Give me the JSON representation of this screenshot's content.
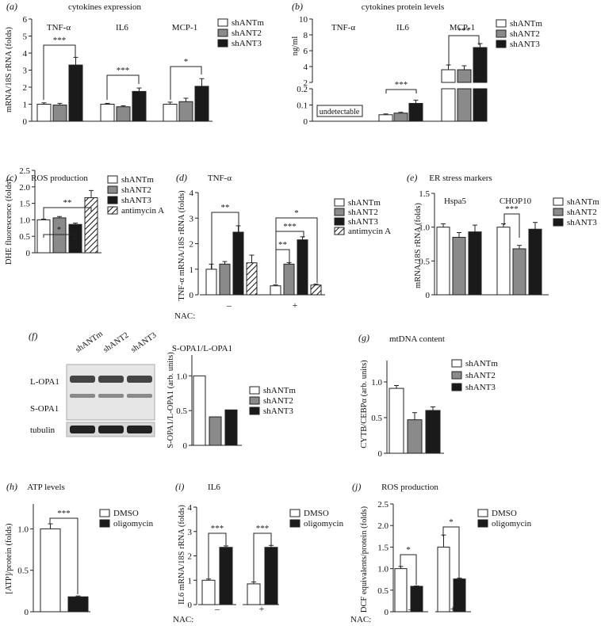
{
  "colors": {
    "white": "#ffffff",
    "grey": "#8a8a8a",
    "black": "#1a1a1a",
    "line": "#222222"
  },
  "panels": {
    "a": {
      "letter": "(a)",
      "title": "cytokines expression",
      "ylabel": "mRNA/18S rRNA (folds)",
      "ticks": [
        "0",
        "1",
        "2",
        "3",
        "4",
        "5",
        "6"
      ],
      "groups": [
        "TNF-α",
        "IL6",
        "MCP-1"
      ],
      "legend": [
        "shANTm",
        "shANT2",
        "shANT3"
      ],
      "sig": [
        "***",
        "***",
        "*"
      ]
    },
    "b": {
      "letter": "(b)",
      "title": "cytokines protein levels",
      "ylabel": "ng/ml",
      "ticks_upper": [
        "2",
        "4",
        "6",
        "8",
        "10"
      ],
      "ticks_lower": [
        "0",
        "0.1",
        "0.2"
      ],
      "groups": [
        "TNF-α",
        "IL6",
        "MCP-1"
      ],
      "undetectable": "undetectable",
      "legend": [
        "shANTm",
        "shANT2",
        "shANT3"
      ],
      "sig": [
        "***",
        "***"
      ]
    },
    "c": {
      "letter": "(c)",
      "title": "ROS production",
      "ylabel": "DHE fluorescence (folds)",
      "ticks": [
        "0",
        "0.5",
        "1.0",
        "1.5",
        "2.0",
        "2.5"
      ],
      "legend": [
        "shANTm",
        "shANT2",
        "shANT3",
        "antimycin A"
      ],
      "sig": [
        "*",
        "**"
      ]
    },
    "d": {
      "letter": "(d)",
      "title": "TNF-α",
      "ylabel": "TNF-α mRNA/18S rRNA (folds)",
      "ticks": [
        "0",
        "1",
        "2",
        "3",
        "4"
      ],
      "nac_label": "NAC:",
      "nac": [
        "–",
        "+"
      ],
      "legend": [
        "shANTm",
        "shANT2",
        "shANT3",
        "antimycin A"
      ],
      "sig": [
        "**",
        "**",
        "***",
        "*"
      ]
    },
    "e": {
      "letter": "(e)",
      "title": "ER stress markers",
      "ylabel": "mRNA/18S rRNA (folds)",
      "ticks": [
        "0",
        "0.5",
        "1.0",
        "1.5"
      ],
      "groups": [
        "Hspa5",
        "CHOP10"
      ],
      "legend": [
        "shANTm",
        "shANT2",
        "shANT3"
      ],
      "sig": [
        "***"
      ]
    },
    "f": {
      "letter": "(f)",
      "lanes": [
        "shANTm",
        "shANT2",
        "shANT3"
      ],
      "bands": [
        "L-OPA1",
        "S-OPA1",
        "tubulin"
      ],
      "title": "S-OPA1/L-OPA1",
      "ylabel": "S-OPA1/L-OPA1 (arb. units)",
      "ticks": [
        "0",
        "0.5",
        "1.0"
      ],
      "legend": [
        "shANTm",
        "shANT2",
        "shANT3"
      ]
    },
    "g": {
      "letter": "(g)",
      "title": "mtDNA content",
      "ylabel": "CYTB/CEBPα (arb. units)",
      "ticks": [
        "0",
        "0.5",
        "1.0"
      ],
      "legend": [
        "shANTm",
        "shANT2",
        "shANT3"
      ]
    },
    "h": {
      "letter": "(h)",
      "title": "ATP levels",
      "ylabel": "[ATP]/protein (folds)",
      "ticks": [
        "0",
        "0.5",
        "1.0"
      ],
      "legend": [
        "DMSO",
        "oligomycin"
      ],
      "sig": [
        "***"
      ]
    },
    "i": {
      "letter": "(i)",
      "title": "IL6",
      "ylabel": "IL6 mRNA/18S rRNA (folds)",
      "ticks": [
        "0",
        "1",
        "2",
        "3",
        "4"
      ],
      "nac_label": "NAC:",
      "nac": [
        "–",
        "+"
      ],
      "legend": [
        "DMSO",
        "oligomycin"
      ],
      "sig": [
        "***",
        "***"
      ]
    },
    "j": {
      "letter": "(j)",
      "title": "ROS production",
      "ylabel": "DCF equivalents/protein (folds)",
      "ticks": [
        "0",
        "0.5",
        "1.0",
        "1.5",
        "2.0",
        "2.5"
      ],
      "nac_label": "NAC:",
      "nac": [
        "–",
        "+"
      ],
      "legend": [
        "DMSO",
        "oligomycin"
      ],
      "sig": [
        "*",
        "*"
      ]
    }
  },
  "chart_data": [
    {
      "panel": "a",
      "type": "bar",
      "title": "cytokines expression",
      "ylabel": "mRNA/18S rRNA (folds)",
      "ylim": [
        0,
        6
      ],
      "categories": [
        "TNF-α",
        "IL6",
        "MCP-1"
      ],
      "series": [
        {
          "name": "shANTm",
          "values": [
            1.0,
            1.0,
            1.0
          ],
          "errors": [
            0.08,
            0.05,
            0.12
          ]
        },
        {
          "name": "shANT2",
          "values": [
            0.95,
            0.85,
            1.15
          ],
          "errors": [
            0.1,
            0.06,
            0.2
          ]
        },
        {
          "name": "shANT3",
          "values": [
            3.3,
            1.75,
            2.05
          ],
          "errors": [
            0.45,
            0.2,
            0.45
          ]
        }
      ]
    },
    {
      "panel": "b",
      "type": "bar",
      "title": "cytokines protein levels",
      "ylabel": "ng/ml",
      "categories": [
        "TNF-α",
        "IL6",
        "MCP-1"
      ],
      "series": [
        {
          "name": "shANTm",
          "values": [
            null,
            0.04,
            3.6
          ],
          "errors": [
            null,
            0.005,
            0.6
          ]
        },
        {
          "name": "shANT2",
          "values": [
            null,
            0.05,
            3.6
          ],
          "errors": [
            null,
            0.005,
            0.5
          ]
        },
        {
          "name": "shANT3",
          "values": [
            null,
            0.11,
            6.4
          ],
          "errors": [
            null,
            0.02,
            0.5
          ]
        }
      ]
    },
    {
      "panel": "c",
      "type": "bar",
      "title": "ROS production",
      "ylabel": "DHE fluorescence (folds)",
      "ylim": [
        0,
        2.5
      ],
      "categories": [
        "shANTm",
        "shANT2",
        "shANT3",
        "antimycin A"
      ],
      "values": [
        1.0,
        1.06,
        0.86,
        1.67
      ],
      "errors": [
        0.02,
        0.04,
        0.04,
        0.22
      ]
    },
    {
      "panel": "d",
      "type": "bar",
      "title": "TNF-α",
      "ylabel": "TNF-α mRNA/18S rRNA (folds)",
      "ylim": [
        0,
        4
      ],
      "categories": [
        "NAC –",
        "NAC +"
      ],
      "series": [
        {
          "name": "shANTm",
          "values": [
            1.0,
            0.35
          ],
          "errors": [
            0.2,
            0.04
          ]
        },
        {
          "name": "shANT2",
          "values": [
            1.2,
            1.2
          ],
          "errors": [
            0.1,
            0.06
          ]
        },
        {
          "name": "shANT3",
          "values": [
            2.45,
            2.15
          ],
          "errors": [
            0.25,
            0.12
          ]
        },
        {
          "name": "antimycin A",
          "values": [
            1.25,
            0.38
          ],
          "errors": [
            0.3,
            0.04
          ]
        }
      ]
    },
    {
      "panel": "e",
      "type": "bar",
      "title": "ER stress markers",
      "ylabel": "mRNA/18S rRNA (folds)",
      "ylim": [
        0,
        1.5
      ],
      "categories": [
        "Hspa5",
        "CHOP10"
      ],
      "series": [
        {
          "name": "shANTm",
          "values": [
            1.0,
            1.0
          ],
          "errors": [
            0.05,
            0.05
          ]
        },
        {
          "name": "shANT2",
          "values": [
            0.85,
            0.68
          ],
          "errors": [
            0.07,
            0.05
          ]
        },
        {
          "name": "shANT3",
          "values": [
            0.93,
            0.97
          ],
          "errors": [
            0.1,
            0.1
          ]
        }
      ]
    },
    {
      "panel": "f",
      "type": "bar",
      "title": "S-OPA1/L-OPA1",
      "ylabel": "S-OPA1/L-OPA1 (arb. units)",
      "ylim": [
        0,
        1.3
      ],
      "categories": [
        "shANTm",
        "shANT2",
        "shANT3"
      ],
      "values": [
        1.0,
        0.41,
        0.51
      ]
    },
    {
      "panel": "g",
      "type": "bar",
      "title": "mtDNA content",
      "ylabel": "CYTB/CEBPα (arb. units)",
      "ylim": [
        0,
        1.3
      ],
      "categories": [
        "shANTm",
        "shANT2",
        "shANT3"
      ],
      "values": [
        0.91,
        0.47,
        0.6
      ],
      "errors": [
        0.04,
        0.1,
        0.05
      ]
    },
    {
      "panel": "h",
      "type": "bar",
      "title": "ATP levels",
      "ylabel": "[ATP]/protein (folds)",
      "ylim": [
        0,
        1.3
      ],
      "categories": [
        "DMSO",
        "oligomycin"
      ],
      "values": [
        1.0,
        0.18
      ],
      "errors": [
        0.06,
        0.01
      ]
    },
    {
      "panel": "i",
      "type": "bar",
      "title": "IL6",
      "ylabel": "IL6 mRNA/18S rRNA (folds)",
      "ylim": [
        0,
        4
      ],
      "categories": [
        "NAC –",
        "NAC +"
      ],
      "series": [
        {
          "name": "DMSO",
          "values": [
            1.0,
            0.85
          ],
          "errors": [
            0.05,
            0.08
          ]
        },
        {
          "name": "oligomycin",
          "values": [
            2.35,
            2.35
          ],
          "errors": [
            0.06,
            0.08
          ]
        }
      ]
    },
    {
      "panel": "j",
      "type": "bar",
      "title": "ROS production",
      "ylabel": "DCF equivalents/protein (folds)",
      "ylim": [
        0,
        2.5
      ],
      "categories": [
        "NAC –",
        "NAC +"
      ],
      "series": [
        {
          "name": "DMSO",
          "values": [
            1.0,
            1.5
          ],
          "errors": [
            0.05,
            0.28
          ]
        },
        {
          "name": "oligomycin",
          "values": [
            0.59,
            0.76
          ],
          "errors": [
            0.01,
            0.02
          ]
        }
      ]
    }
  ]
}
